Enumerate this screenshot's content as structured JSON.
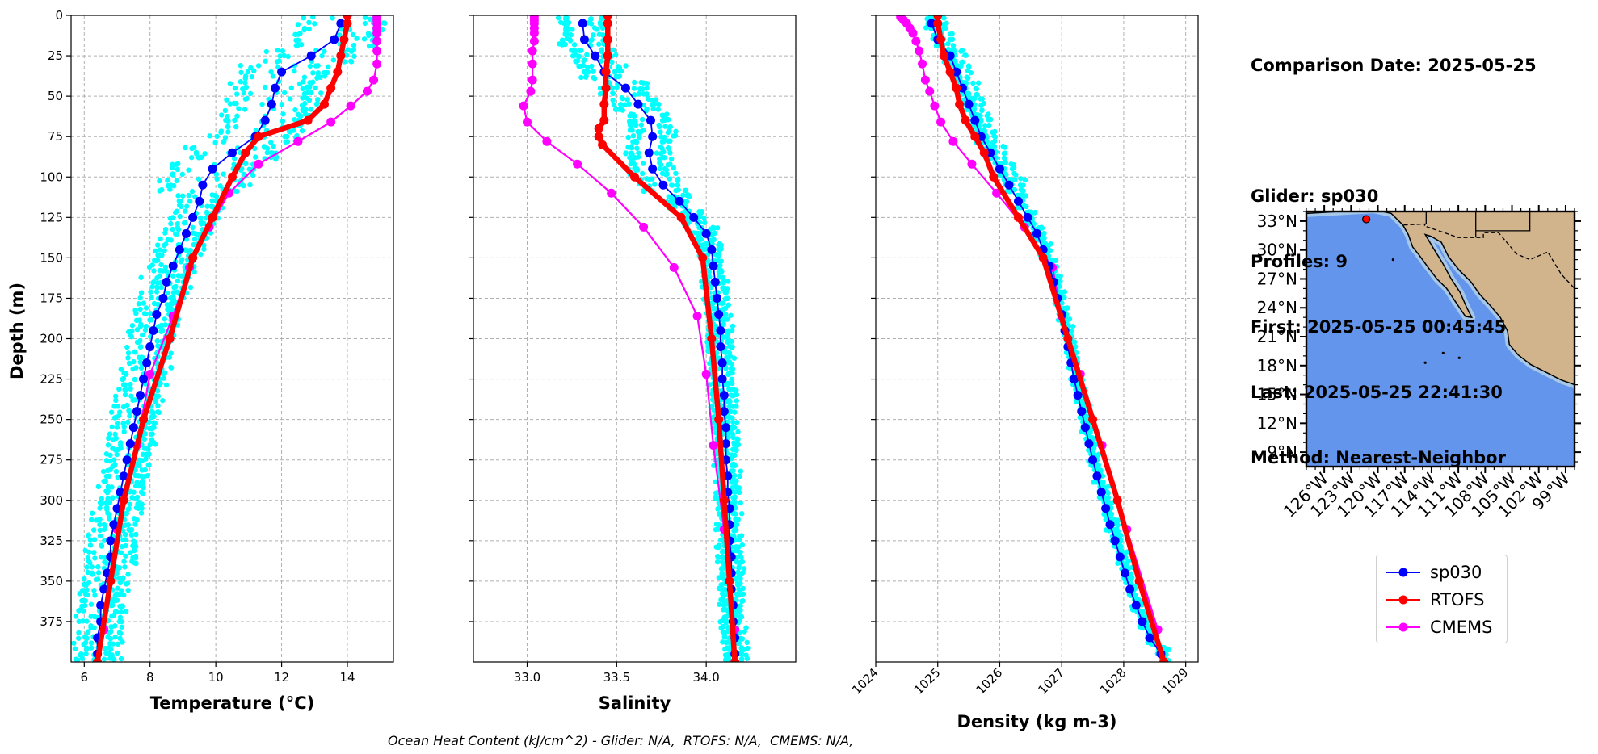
{
  "info": {
    "comparison_date": "Comparison Date: 2025-05-25",
    "glider": "Glider: sp030",
    "profiles": "Profiles: 9",
    "first": "First: 2025-05-25 00:45:45",
    "last": "Last: 2025-05-25 22:41:30",
    "method": "Method: Nearest-Neighbor"
  },
  "footer": "Ocean Heat Content (kJ/cm^2) - Glider: N/A,  RTOFS: N/A,  CMEMS: N/A,",
  "colors": {
    "glider": "#0000ff",
    "rtofs": "#ff0000",
    "cmems": "#ff00ff",
    "raw": "#00ffff",
    "ocean": "#6495ed",
    "land": "#d2b48c",
    "shelf": "#a7c7e7"
  },
  "legend": [
    {
      "name": "sp030",
      "color": "#0000ff"
    },
    {
      "name": "RTOFS",
      "color": "#ff0000"
    },
    {
      "name": "CMEMS",
      "color": "#ff00ff"
    }
  ],
  "chart_data": [
    {
      "type": "line",
      "panel": "temperature",
      "xlabel": "Temperature (°C)",
      "ylabel": "Depth (m)",
      "xlim": [
        5.6,
        15.4
      ],
      "ylim": [
        400,
        0
      ],
      "xticks": [
        6,
        8,
        10,
        12,
        14
      ],
      "yticks": [
        0,
        25,
        50,
        75,
        100,
        125,
        150,
        175,
        200,
        225,
        250,
        275,
        300,
        325,
        350,
        375
      ],
      "grid": true,
      "depth": [
        5,
        15,
        25,
        35,
        45,
        55,
        65,
        75,
        85,
        95,
        105,
        115,
        125,
        135,
        145,
        155,
        165,
        175,
        185,
        195,
        205,
        215,
        225,
        235,
        245,
        255,
        265,
        275,
        285,
        295,
        305,
        315,
        325,
        335,
        345,
        355,
        365,
        375,
        385,
        395
      ],
      "series": [
        {
          "name": "sp030",
          "values": [
            13.8,
            13.6,
            12.9,
            12.0,
            11.8,
            11.7,
            11.5,
            11.2,
            10.5,
            9.9,
            9.6,
            9.5,
            9.3,
            9.1,
            8.9,
            8.7,
            8.5,
            8.4,
            8.2,
            8.1,
            8.0,
            7.9,
            7.8,
            7.7,
            7.6,
            7.5,
            7.4,
            7.3,
            7.2,
            7.1,
            7.0,
            6.9,
            6.8,
            6.8,
            6.7,
            6.6,
            6.5,
            6.5,
            6.4,
            6.4
          ]
        },
        {
          "name": "RTOFS",
          "depth": [
            0,
            5,
            15,
            25,
            35,
            45,
            55,
            65,
            75,
            85,
            100,
            125,
            150,
            200,
            250,
            300,
            350,
            400
          ],
          "values": [
            14.0,
            14.0,
            13.9,
            13.8,
            13.7,
            13.5,
            13.3,
            12.8,
            11.3,
            10.9,
            10.5,
            9.9,
            9.3,
            8.6,
            7.8,
            7.2,
            6.8,
            6.4
          ]
        },
        {
          "name": "CMEMS",
          "depth": [
            1,
            3,
            5,
            8,
            11,
            16,
            22,
            30,
            40,
            47,
            56,
            66,
            78,
            92,
            110,
            131,
            156,
            186,
            222,
            266,
            318,
            380
          ],
          "values": [
            14.9,
            14.9,
            14.9,
            14.9,
            14.9,
            14.9,
            14.9,
            14.9,
            14.8,
            14.6,
            14.1,
            13.5,
            12.5,
            11.3,
            10.4,
            9.8,
            9.2,
            8.7,
            8.0,
            7.6,
            7.0,
            6.6
          ]
        }
      ]
    },
    {
      "type": "line",
      "panel": "salinity",
      "xlabel": "Salinity",
      "xlim": [
        32.7,
        34.5
      ],
      "ylim": [
        400,
        0
      ],
      "xticks": [
        33.0,
        33.5,
        34.0
      ],
      "grid": true,
      "depth": [
        5,
        15,
        25,
        35,
        45,
        55,
        65,
        75,
        85,
        95,
        105,
        115,
        125,
        135,
        145,
        155,
        165,
        175,
        185,
        195,
        205,
        215,
        225,
        235,
        245,
        255,
        265,
        275,
        285,
        295,
        305,
        315,
        325,
        335,
        345,
        355,
        365,
        375,
        385,
        395
      ],
      "series": [
        {
          "name": "sp030",
          "values": [
            33.31,
            33.32,
            33.38,
            33.43,
            33.55,
            33.62,
            33.69,
            33.7,
            33.68,
            33.7,
            33.76,
            33.85,
            33.93,
            34.0,
            34.03,
            34.04,
            34.05,
            34.06,
            34.07,
            34.08,
            34.08,
            34.09,
            34.09,
            34.1,
            34.1,
            34.11,
            34.11,
            34.11,
            34.12,
            34.12,
            34.13,
            34.13,
            34.13,
            34.14,
            34.14,
            34.14,
            34.15,
            34.15,
            34.16,
            34.16
          ]
        },
        {
          "name": "RTOFS",
          "depth": [
            0,
            5,
            15,
            25,
            35,
            45,
            55,
            65,
            70,
            75,
            80,
            100,
            125,
            150,
            200,
            250,
            300,
            350,
            400
          ],
          "values": [
            33.45,
            33.45,
            33.45,
            33.45,
            33.44,
            33.44,
            33.43,
            33.43,
            33.4,
            33.4,
            33.42,
            33.6,
            33.86,
            33.98,
            34.03,
            34.07,
            34.1,
            34.13,
            34.16
          ]
        },
        {
          "name": "CMEMS",
          "depth": [
            1,
            3,
            5,
            8,
            11,
            16,
            22,
            30,
            40,
            47,
            56,
            66,
            78,
            92,
            110,
            131,
            156,
            186,
            222,
            266,
            318,
            380
          ],
          "values": [
            33.04,
            33.04,
            33.04,
            33.04,
            33.04,
            33.04,
            33.03,
            33.03,
            33.03,
            33.02,
            32.98,
            33.0,
            33.11,
            33.28,
            33.47,
            33.65,
            33.82,
            33.95,
            34.0,
            34.04,
            34.1,
            34.16
          ]
        }
      ]
    },
    {
      "type": "line",
      "panel": "density",
      "xlabel": "Density (kg m-3)",
      "xlim": [
        1024,
        1029.2
      ],
      "ylim": [
        400,
        0
      ],
      "xticks": [
        1024,
        1025,
        1026,
        1027,
        1028,
        1029
      ],
      "grid": true,
      "depth": [
        5,
        15,
        25,
        35,
        45,
        55,
        65,
        75,
        85,
        95,
        105,
        115,
        125,
        135,
        145,
        155,
        165,
        175,
        185,
        195,
        205,
        215,
        225,
        235,
        245,
        255,
        265,
        275,
        285,
        295,
        305,
        315,
        325,
        335,
        345,
        355,
        365,
        375,
        385,
        395
      ],
      "series": [
        {
          "name": "sp030",
          "values": [
            1024.9,
            1025.0,
            1025.2,
            1025.3,
            1025.4,
            1025.5,
            1025.6,
            1025.7,
            1025.85,
            1026.0,
            1026.15,
            1026.3,
            1026.45,
            1026.6,
            1026.7,
            1026.8,
            1026.87,
            1026.93,
            1027.0,
            1027.05,
            1027.1,
            1027.15,
            1027.2,
            1027.26,
            1027.32,
            1027.38,
            1027.44,
            1027.5,
            1027.57,
            1027.64,
            1027.71,
            1027.78,
            1027.86,
            1027.94,
            1028.02,
            1028.1,
            1028.2,
            1028.3,
            1028.42,
            1028.6
          ]
        },
        {
          "name": "RTOFS",
          "depth": [
            0,
            5,
            15,
            25,
            35,
            45,
            55,
            65,
            75,
            85,
            100,
            125,
            150,
            200,
            250,
            300,
            350,
            400
          ],
          "values": [
            1025.0,
            1025.0,
            1025.05,
            1025.1,
            1025.2,
            1025.3,
            1025.35,
            1025.45,
            1025.6,
            1025.75,
            1025.9,
            1026.3,
            1026.7,
            1027.1,
            1027.5,
            1027.9,
            1028.25,
            1028.65
          ]
        },
        {
          "name": "CMEMS",
          "depth": [
            1,
            3,
            5,
            8,
            11,
            16,
            22,
            30,
            40,
            47,
            56,
            66,
            78,
            92,
            110,
            131,
            156,
            186,
            222,
            266,
            318,
            380
          ],
          "values": [
            1024.4,
            1024.45,
            1024.5,
            1024.55,
            1024.6,
            1024.65,
            1024.7,
            1024.75,
            1024.8,
            1024.87,
            1024.95,
            1025.05,
            1025.25,
            1025.55,
            1025.95,
            1026.4,
            1026.85,
            1027.0,
            1027.3,
            1027.65,
            1028.05,
            1028.55
          ]
        }
      ]
    }
  ],
  "map": {
    "lat_ticks": [
      "33°N",
      "30°N",
      "27°N",
      "24°N",
      "21°N",
      "18°N",
      "15°N",
      "12°N",
      "9°N"
    ],
    "lon_ticks": [
      "126°W",
      "123°W",
      "120°W",
      "117°W",
      "114°W",
      "111°W",
      "108°W",
      "105°W",
      "102°W",
      "99°W"
    ],
    "marker": {
      "lon": -121.3,
      "lat": 33.2
    }
  }
}
